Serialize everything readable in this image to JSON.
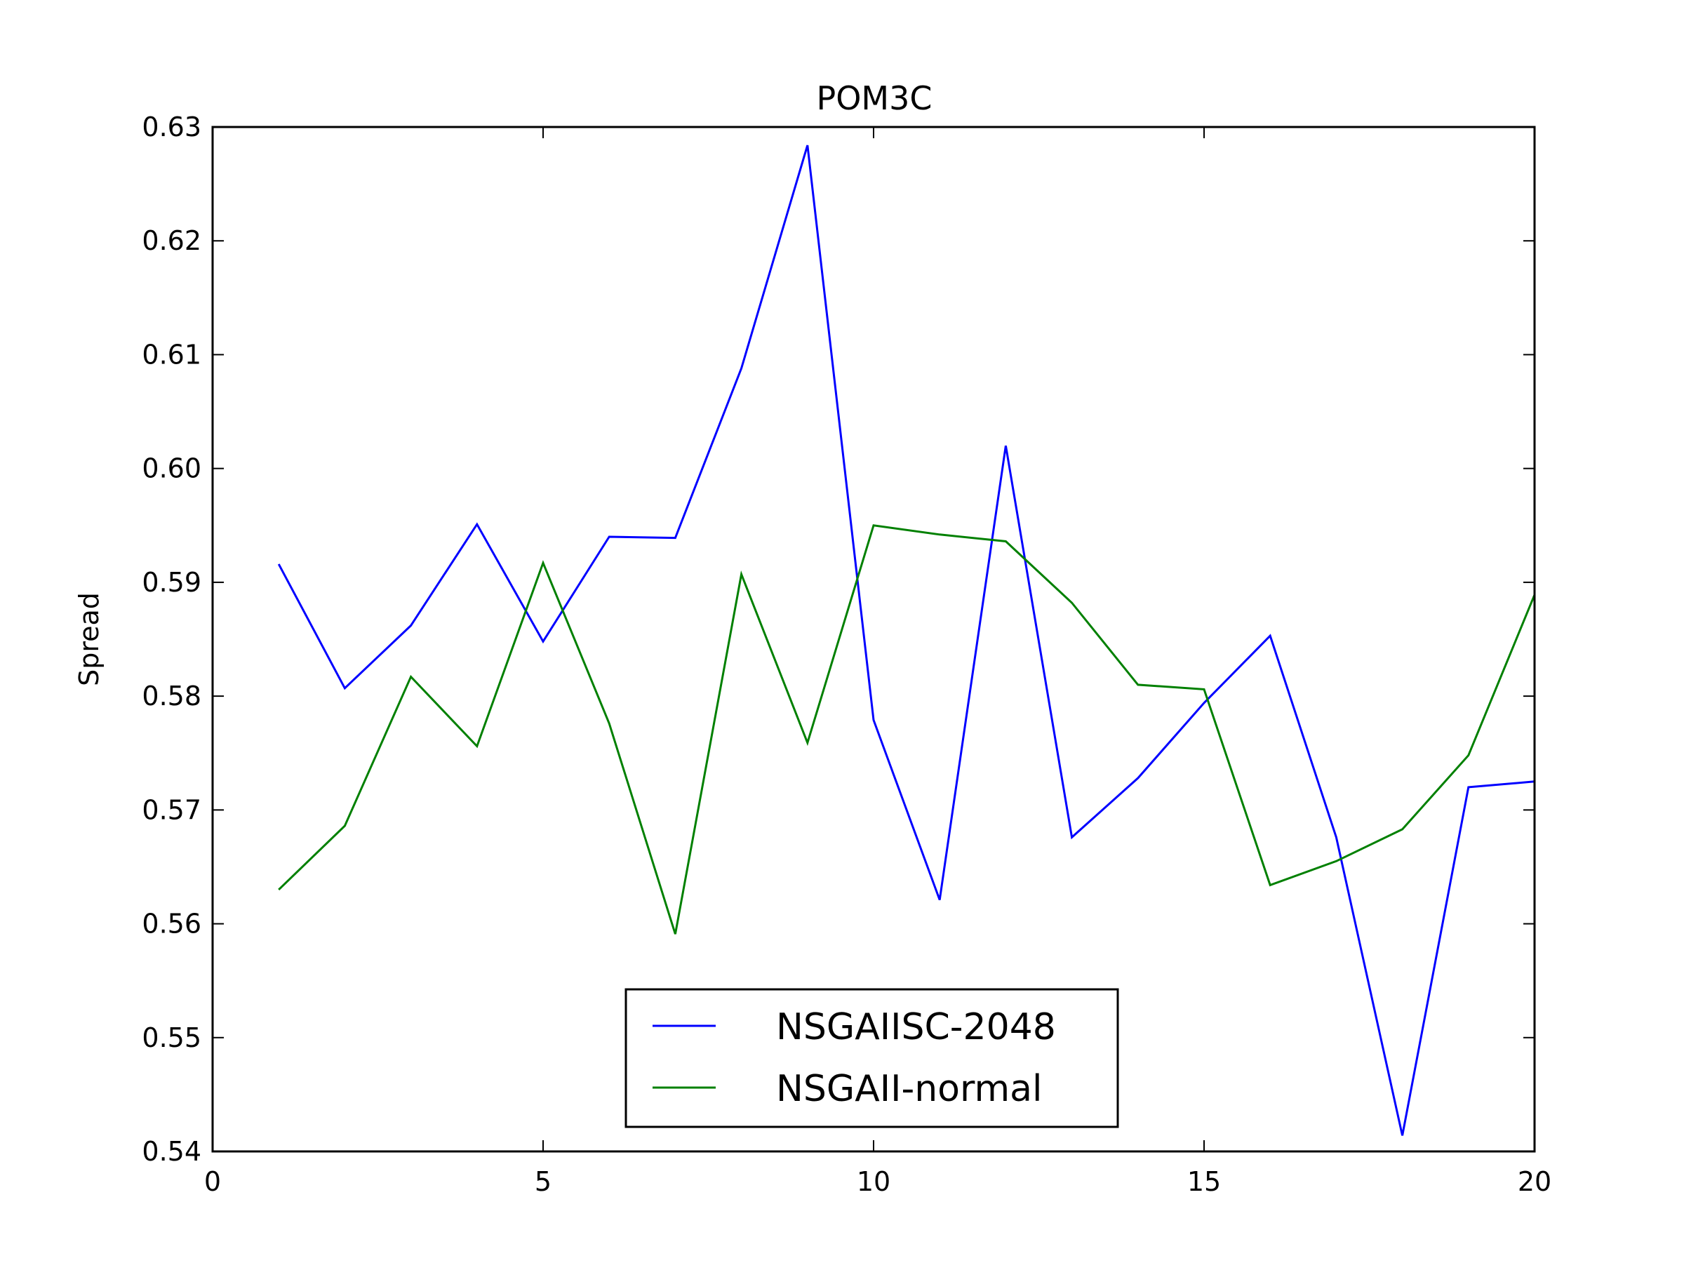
{
  "chart_data": {
    "type": "line",
    "title": "POM3C",
    "xlabel": "",
    "ylabel": "Spread",
    "xlim": [
      0,
      20
    ],
    "ylim": [
      0.54,
      0.63
    ],
    "xticks": [
      0,
      5,
      10,
      15,
      20
    ],
    "xtick_labels": [
      "0",
      "5",
      "10",
      "15",
      "20"
    ],
    "yticks": [
      0.54,
      0.55,
      0.56,
      0.57,
      0.58,
      0.59,
      0.6,
      0.61,
      0.62,
      0.63
    ],
    "ytick_labels": [
      "0.54",
      "0.55",
      "0.56",
      "0.57",
      "0.58",
      "0.59",
      "0.60",
      "0.61",
      "0.62",
      "0.63"
    ],
    "grid": false,
    "legend_position": "bottom-center",
    "x": [
      1,
      2,
      3,
      4,
      5,
      6,
      7,
      8,
      9,
      10,
      11,
      12,
      13,
      14,
      15,
      16,
      17,
      18,
      19,
      20
    ],
    "series": [
      {
        "name": "NSGAIISC-2048",
        "color": "#0000ff",
        "values": [
          0.5916,
          0.5807,
          0.5862,
          0.5951,
          0.5848,
          0.594,
          0.5939,
          0.6088,
          0.6284,
          0.5779,
          0.5621,
          0.602,
          0.5676,
          0.5728,
          0.5794,
          0.5853,
          0.5676,
          0.5414,
          0.572,
          0.5725
        ]
      },
      {
        "name": "NSGAII-normal",
        "color": "#008000",
        "values": [
          0.563,
          0.5686,
          0.5817,
          0.5756,
          0.5917,
          0.5776,
          0.5591,
          0.5907,
          0.5759,
          0.595,
          0.5942,
          0.5936,
          0.5882,
          0.581,
          0.5806,
          0.5634,
          0.5655,
          0.5683,
          0.5748,
          0.5889
        ]
      }
    ]
  }
}
